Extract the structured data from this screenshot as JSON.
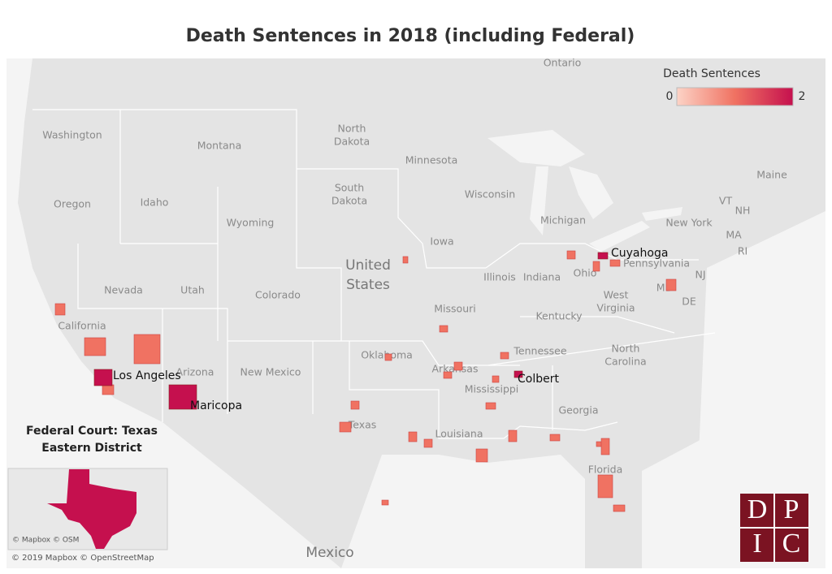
{
  "title": "Death Sentences in 2018 (including Federal)",
  "legend": {
    "title": "Death Sentences",
    "min": 0,
    "max": 2,
    "colors": [
      "#fcd3c6",
      "#f07262",
      "#c5104e"
    ]
  },
  "labeled_counties": [
    {
      "name": "Cuyahoga",
      "value": 2
    },
    {
      "name": "Los Angeles",
      "value": 2
    },
    {
      "name": "Maricopa",
      "value": 2
    },
    {
      "name": "Colbert",
      "value": 2
    }
  ],
  "other_counties": [
    1,
    1,
    1,
    1,
    1,
    1,
    1,
    1,
    1,
    1,
    1,
    1,
    1,
    1,
    1,
    1,
    1,
    1,
    1,
    1,
    1,
    1,
    1,
    1,
    1,
    1,
    1,
    1
  ],
  "map_labels": [
    [
      "Ontario"
    ],
    [
      "Washington"
    ],
    [
      "Montana"
    ],
    [
      "North",
      "Dakota"
    ],
    [
      "Minnesota"
    ],
    [
      "South",
      "Dakota"
    ],
    [
      "Oregon"
    ],
    [
      "Idaho"
    ],
    [
      "Wyoming"
    ],
    [
      "Wisconsin"
    ],
    [
      "Michigan"
    ],
    [
      "New York"
    ],
    [
      "Maine"
    ],
    [
      "VT"
    ],
    [
      "NH"
    ],
    [
      "MA"
    ],
    [
      "RI"
    ],
    [
      "Iowa"
    ],
    [
      "United",
      "States"
    ],
    [
      "Nevada"
    ],
    [
      "Utah"
    ],
    [
      "Colorado"
    ],
    [
      "Illinois"
    ],
    [
      "Indiana"
    ],
    [
      "Ohio"
    ],
    [
      "Pennsylvania"
    ],
    [
      "NJ"
    ],
    [
      "MD"
    ],
    [
      "DE"
    ],
    [
      "West",
      "Virginia"
    ],
    [
      "Kentucky"
    ],
    [
      "Missouri"
    ],
    [
      "California"
    ],
    [
      "Oklahoma"
    ],
    [
      "Tennessee"
    ],
    [
      "North",
      "Carolina"
    ],
    [
      "Arkansas"
    ],
    [
      "New Mexico"
    ],
    [
      "Arizona"
    ],
    [
      "Mississippi"
    ],
    [
      "Georgia"
    ],
    [
      "Texas"
    ],
    [
      "Louisiana"
    ],
    [
      "Florida"
    ],
    [
      "Mexico"
    ]
  ],
  "inset": {
    "title": [
      "Federal Court: Texas",
      "Eastern District"
    ],
    "value": 2,
    "attribution": "© Mapbox © OSM"
  },
  "attribution": "© 2019 Mapbox © OpenStreetMap",
  "logo": [
    "D",
    "P",
    "I",
    "C"
  ]
}
